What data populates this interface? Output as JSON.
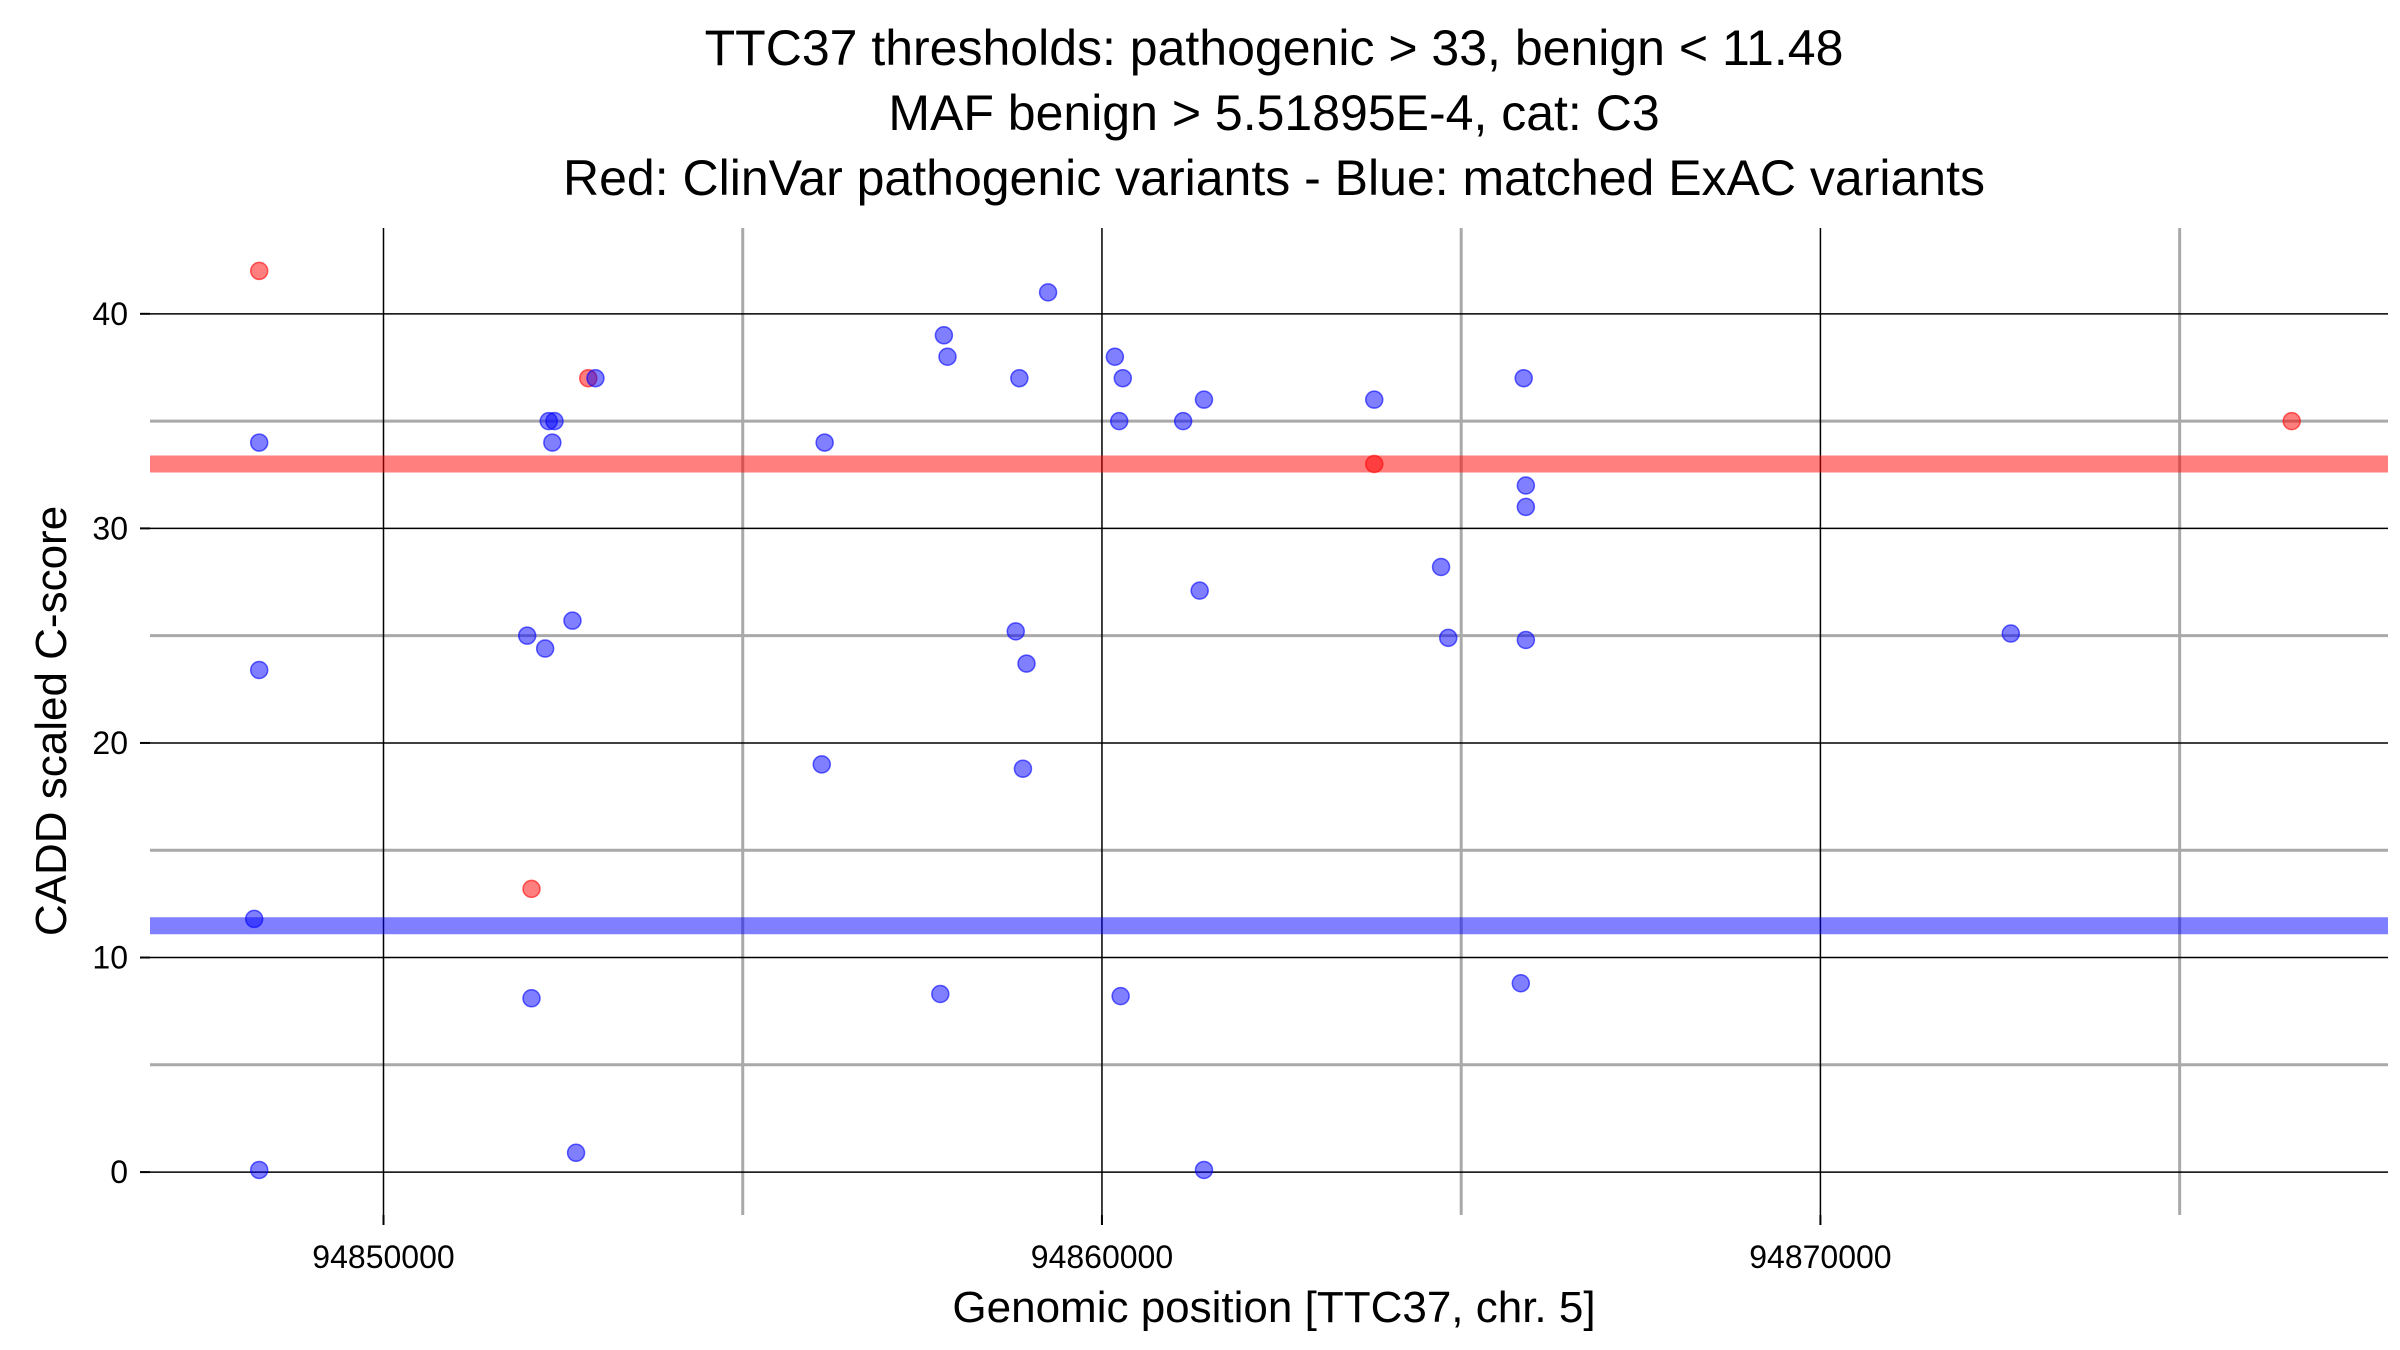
{
  "chart_data": {
    "type": "scatter",
    "title_lines": [
      "TTC37 thresholds: pathogenic > 33, benign < 11.48",
      "MAF benign > 5.51895E-4, cat: C3",
      "Red: ClinVar pathogenic variants - Blue: matched ExAC variants"
    ],
    "xlabel": "Genomic position [TTC37, chr. 5]",
    "ylabel": "CADD scaled C-score",
    "xlim": [
      94846750,
      94877900
    ],
    "ylim": [
      -2,
      44
    ],
    "x_ticks": [
      94850000,
      94860000,
      94870000
    ],
    "x_tick_labels": [
      "94850000",
      "94860000",
      "94870000"
    ],
    "x_minor_grid": [
      94855000,
      94865000,
      94875000
    ],
    "y_ticks": [
      0,
      10,
      20,
      30,
      40
    ],
    "y_tick_labels": [
      "0",
      "10",
      "20",
      "30",
      "40"
    ],
    "y_minor_grid": [
      5,
      15,
      25,
      35
    ],
    "grid": true,
    "colors": {
      "pathogenic": "#ff0000",
      "benign": "#0000ff",
      "major_grid": "#000000",
      "minor_grid": "#a9a9a9"
    },
    "thresholds": [
      {
        "name": "pathogenic threshold",
        "y": 33,
        "color": "#ff0000"
      },
      {
        "name": "benign threshold",
        "y": 11.48,
        "color": "#0000ff"
      }
    ],
    "series": [
      {
        "name": "ClinVar pathogenic variants",
        "color": "#ff0000",
        "points": [
          {
            "x": 94848270,
            "y": 42
          },
          {
            "x": 94852060,
            "y": 13.2
          },
          {
            "x": 94852850,
            "y": 37
          },
          {
            "x": 94863790,
            "y": 33
          },
          {
            "x": 94876560,
            "y": 35
          }
        ]
      },
      {
        "name": "matched ExAC variants",
        "color": "#0000ff",
        "points": [
          {
            "x": 94848200,
            "y": 11.8
          },
          {
            "x": 94848270,
            "y": 34
          },
          {
            "x": 94848270,
            "y": 23.4
          },
          {
            "x": 94848270,
            "y": 0.1
          },
          {
            "x": 94852000,
            "y": 25
          },
          {
            "x": 94852060,
            "y": 8.1
          },
          {
            "x": 94852250,
            "y": 24.4
          },
          {
            "x": 94852300,
            "y": 35
          },
          {
            "x": 94852350,
            "y": 34
          },
          {
            "x": 94852380,
            "y": 35
          },
          {
            "x": 94852630,
            "y": 25.7
          },
          {
            "x": 94852680,
            "y": 0.9
          },
          {
            "x": 94852950,
            "y": 37
          },
          {
            "x": 94856100,
            "y": 19
          },
          {
            "x": 94856140,
            "y": 34
          },
          {
            "x": 94857800,
            "y": 39
          },
          {
            "x": 94857750,
            "y": 8.3
          },
          {
            "x": 94857850,
            "y": 38
          },
          {
            "x": 94858800,
            "y": 25.2
          },
          {
            "x": 94858850,
            "y": 37
          },
          {
            "x": 94858900,
            "y": 18.8
          },
          {
            "x": 94858950,
            "y": 23.7
          },
          {
            "x": 94859250,
            "y": 41
          },
          {
            "x": 94860180,
            "y": 38
          },
          {
            "x": 94860240,
            "y": 35
          },
          {
            "x": 94860260,
            "y": 8.2
          },
          {
            "x": 94860290,
            "y": 37
          },
          {
            "x": 94861130,
            "y": 35
          },
          {
            "x": 94861360,
            "y": 27.1
          },
          {
            "x": 94861420,
            "y": 36
          },
          {
            "x": 94861420,
            "y": 0.1
          },
          {
            "x": 94863790,
            "y": 36
          },
          {
            "x": 94864720,
            "y": 28.2
          },
          {
            "x": 94864820,
            "y": 24.9
          },
          {
            "x": 94865830,
            "y": 8.8
          },
          {
            "x": 94865870,
            "y": 37
          },
          {
            "x": 94865900,
            "y": 32
          },
          {
            "x": 94865900,
            "y": 31
          },
          {
            "x": 94865900,
            "y": 24.8
          },
          {
            "x": 94872650,
            "y": 25.1
          }
        ]
      }
    ]
  }
}
